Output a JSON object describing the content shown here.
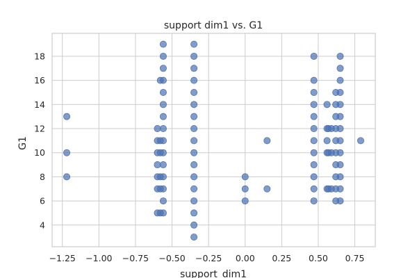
{
  "chart_data": {
    "type": "scatter",
    "title": "support dim1 vs. G1",
    "xlabel": "support_dim1",
    "ylabel": "G1",
    "xlim": [
      -1.32,
      0.89
    ],
    "ylim": [
      2.2,
      19.9
    ],
    "x_ticks": [
      -1.25,
      -1.0,
      -0.75,
      -0.5,
      -0.25,
      0.0,
      0.25,
      0.5,
      0.75
    ],
    "x_tick_labels": [
      "−1.25",
      "−1.00",
      "−0.75",
      "−0.50",
      "−0.25",
      "0.00",
      "0.25",
      "0.50",
      "0.75"
    ],
    "y_ticks": [
      4,
      6,
      8,
      10,
      12,
      14,
      16,
      18
    ],
    "y_tick_labels": [
      "4",
      "6",
      "8",
      "10",
      "12",
      "14",
      "16",
      "18"
    ],
    "grid": true,
    "point_color": "#4c72b0",
    "point_alpha": 0.7,
    "points": [
      [
        -1.22,
        13
      ],
      [
        -1.22,
        10
      ],
      [
        -1.22,
        8
      ],
      [
        -0.6,
        12
      ],
      [
        -0.6,
        11
      ],
      [
        -0.6,
        10
      ],
      [
        -0.6,
        9
      ],
      [
        -0.6,
        8
      ],
      [
        -0.6,
        7
      ],
      [
        -0.6,
        5
      ],
      [
        -0.58,
        16
      ],
      [
        -0.58,
        11
      ],
      [
        -0.58,
        10
      ],
      [
        -0.58,
        8
      ],
      [
        -0.58,
        7
      ],
      [
        -0.58,
        5
      ],
      [
        -0.56,
        19
      ],
      [
        -0.56,
        18
      ],
      [
        -0.56,
        17
      ],
      [
        -0.56,
        16
      ],
      [
        -0.56,
        15
      ],
      [
        -0.56,
        14
      ],
      [
        -0.56,
        13
      ],
      [
        -0.56,
        12
      ],
      [
        -0.56,
        11
      ],
      [
        -0.56,
        10
      ],
      [
        -0.56,
        9
      ],
      [
        -0.56,
        8
      ],
      [
        -0.56,
        7
      ],
      [
        -0.56,
        6
      ],
      [
        -0.56,
        5
      ],
      [
        -0.35,
        19
      ],
      [
        -0.35,
        18
      ],
      [
        -0.35,
        17
      ],
      [
        -0.35,
        16
      ],
      [
        -0.35,
        15
      ],
      [
        -0.35,
        14
      ],
      [
        -0.35,
        13
      ],
      [
        -0.35,
        12
      ],
      [
        -0.35,
        11
      ],
      [
        -0.35,
        10
      ],
      [
        -0.35,
        9
      ],
      [
        -0.35,
        8
      ],
      [
        -0.35,
        7
      ],
      [
        -0.35,
        6
      ],
      [
        -0.35,
        5
      ],
      [
        -0.35,
        4
      ],
      [
        -0.35,
        3
      ],
      [
        0.0,
        8
      ],
      [
        0.0,
        7
      ],
      [
        0.0,
        6
      ],
      [
        0.15,
        11
      ],
      [
        0.15,
        7
      ],
      [
        0.47,
        18
      ],
      [
        0.47,
        16
      ],
      [
        0.47,
        15
      ],
      [
        0.47,
        14
      ],
      [
        0.47,
        13
      ],
      [
        0.47,
        12
      ],
      [
        0.47,
        11
      ],
      [
        0.47,
        10
      ],
      [
        0.47,
        9
      ],
      [
        0.47,
        8
      ],
      [
        0.47,
        7
      ],
      [
        0.47,
        6
      ],
      [
        0.56,
        14
      ],
      [
        0.56,
        12
      ],
      [
        0.56,
        11
      ],
      [
        0.56,
        10
      ],
      [
        0.56,
        7
      ],
      [
        0.57,
        12
      ],
      [
        0.57,
        10
      ],
      [
        0.57,
        7
      ],
      [
        0.59,
        12
      ],
      [
        0.59,
        10
      ],
      [
        0.59,
        7
      ],
      [
        0.62,
        15
      ],
      [
        0.62,
        14
      ],
      [
        0.62,
        13
      ],
      [
        0.62,
        12
      ],
      [
        0.62,
        11
      ],
      [
        0.62,
        10
      ],
      [
        0.62,
        9
      ],
      [
        0.62,
        8
      ],
      [
        0.62,
        7
      ],
      [
        0.62,
        6
      ],
      [
        0.65,
        18
      ],
      [
        0.65,
        17
      ],
      [
        0.65,
        16
      ],
      [
        0.65,
        15
      ],
      [
        0.65,
        14
      ],
      [
        0.65,
        13
      ],
      [
        0.65,
        12
      ],
      [
        0.65,
        11
      ],
      [
        0.65,
        10
      ],
      [
        0.65,
        9
      ],
      [
        0.65,
        8
      ],
      [
        0.65,
        7
      ],
      [
        0.65,
        6
      ],
      [
        0.79,
        11
      ]
    ]
  }
}
